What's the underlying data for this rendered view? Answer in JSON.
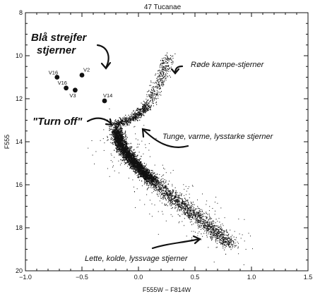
{
  "chart_data": {
    "type": "scatter",
    "title": "47 Tucanae",
    "xlabel": "F555W − F814W",
    "ylabel": "F555",
    "xlim": [
      -1.0,
      1.5
    ],
    "ylim": [
      20,
      8
    ],
    "y_inverted": true,
    "x_ticks": [
      -1.0,
      -0.5,
      0.0,
      0.5,
      1.0,
      1.5
    ],
    "x_tick_labels": [
      "−1.0",
      "−0.5",
      "0.0",
      "0.5",
      "1.0",
      "1.5"
    ],
    "y_ticks": [
      8,
      10,
      12,
      14,
      16,
      18,
      20
    ],
    "y_tick_labels": [
      "8",
      "10",
      "12",
      "14",
      "16",
      "18",
      "20"
    ],
    "grid": false,
    "marker_color": "#111111",
    "main_sequence_ridge": [
      {
        "x": -0.2,
        "y": 13.4
      },
      {
        "x": -0.17,
        "y": 14.0
      },
      {
        "x": -0.1,
        "y": 14.6
      },
      {
        "x": 0.0,
        "y": 15.2
      },
      {
        "x": 0.12,
        "y": 15.8
      },
      {
        "x": 0.25,
        "y": 16.4
      },
      {
        "x": 0.4,
        "y": 17.0
      },
      {
        "x": 0.55,
        "y": 17.6
      },
      {
        "x": 0.7,
        "y": 18.3
      },
      {
        "x": 0.82,
        "y": 18.8
      }
    ],
    "subgiant_branch": [
      {
        "x": -0.22,
        "y": 13.2
      },
      {
        "x": -0.1,
        "y": 13.0
      },
      {
        "x": 0.0,
        "y": 12.7
      },
      {
        "x": 0.08,
        "y": 12.3
      }
    ],
    "red_giant_branch": [
      {
        "x": 0.08,
        "y": 12.3
      },
      {
        "x": 0.13,
        "y": 11.8
      },
      {
        "x": 0.17,
        "y": 11.4
      },
      {
        "x": 0.2,
        "y": 11.0
      },
      {
        "x": 0.23,
        "y": 10.5
      },
      {
        "x": 0.26,
        "y": 10.0
      }
    ],
    "blue_stragglers": [
      {
        "label": "V16",
        "x": -0.72,
        "y": 11.0
      },
      {
        "label": "V2",
        "x": -0.5,
        "y": 10.9
      },
      {
        "label": "V16",
        "x": -0.64,
        "y": 11.5
      },
      {
        "label": "V3",
        "x": -0.56,
        "y": 11.6
      },
      {
        "label": "V14",
        "x": -0.3,
        "y": 12.1
      }
    ],
    "annotations": [
      {
        "text": "Blå strejfer",
        "style": "big"
      },
      {
        "text": "stjerner",
        "style": "big"
      },
      {
        "text": "\"Turn off\"",
        "style": "big"
      },
      {
        "text": "Røde kampe-stjerner",
        "style": "small"
      },
      {
        "text": "Tunge, varme, lysstarke stjerner",
        "style": "small"
      },
      {
        "text": "Lette, kolde, lyssvage stjerner",
        "style": "small"
      }
    ]
  }
}
